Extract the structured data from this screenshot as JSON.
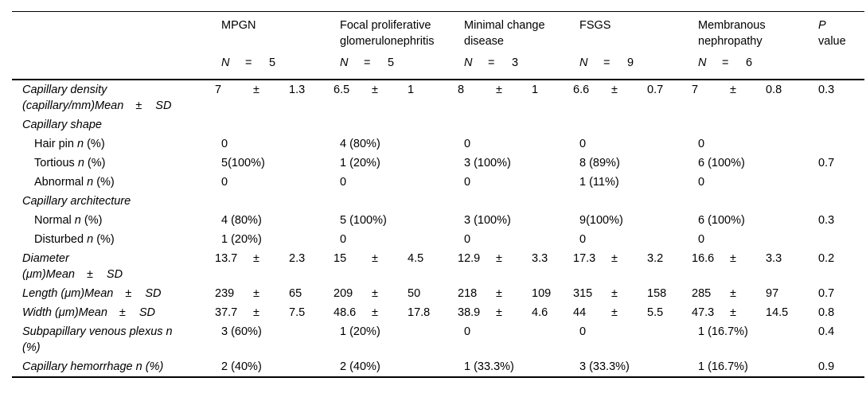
{
  "colors": {
    "background": "#ffffff",
    "text": "#000000",
    "rule": "#000000"
  },
  "table": {
    "pm_symbol": "±",
    "group_columns": [
      {
        "label": "MPGN",
        "n_symbol": "N",
        "eq": "=",
        "n": "5"
      },
      {
        "label": "Focal proliferative glomerulonephritis",
        "n_symbol": "N",
        "eq": "=",
        "n": "5"
      },
      {
        "label": "Minimal change disease",
        "n_symbol": "N",
        "eq": "=",
        "n": "3"
      },
      {
        "label": "FSGS",
        "n_symbol": "N",
        "eq": "=",
        "n": "9"
      },
      {
        "label": "Membranous nephropathy",
        "n_symbol": "N",
        "eq": "=",
        "n": "6"
      }
    ],
    "p_column": {
      "line1": "P",
      "line2": "value"
    },
    "rows": [
      {
        "label_lines": [
          {
            "parts": [
              {
                "t": "Capillary density",
                "i": true
              }
            ]
          },
          {
            "parts": [
              {
                "t": "(capillary/mm)Mean",
                "i": true
              }
            ],
            "pm": "±",
            "sd": "SD"
          }
        ],
        "indent": false,
        "cells": [
          {
            "mean": "7",
            "sd": "1.3"
          },
          {
            "mean": "6.5",
            "sd": "1"
          },
          {
            "mean": "8",
            "sd": "1"
          },
          {
            "mean": "6.6",
            "sd": "0.7"
          },
          {
            "mean": "7",
            "sd": "0.8"
          }
        ],
        "p": "0.3"
      },
      {
        "label_lines": [
          {
            "parts": [
              {
                "t": "Capillary shape",
                "i": true
              }
            ]
          }
        ],
        "indent": false,
        "cells": [
          null,
          null,
          null,
          null,
          null
        ],
        "p": ""
      },
      {
        "label_lines": [
          {
            "parts": [
              {
                "t": "Hair pin ",
                "i": false
              },
              {
                "t": "n",
                "i": true
              },
              {
                "t": " (%)",
                "i": false
              }
            ]
          }
        ],
        "indent": true,
        "cells": [
          {
            "text": "0"
          },
          {
            "text": "4 (80%)"
          },
          {
            "text": "0"
          },
          {
            "text": "0"
          },
          {
            "text": "0"
          }
        ],
        "p": ""
      },
      {
        "label_lines": [
          {
            "parts": [
              {
                "t": "Tortious ",
                "i": false
              },
              {
                "t": "n",
                "i": true
              },
              {
                "t": " (%)",
                "i": false
              }
            ]
          }
        ],
        "indent": true,
        "cells": [
          {
            "text": "5(100%)"
          },
          {
            "text": "1 (20%)"
          },
          {
            "text": "3 (100%)"
          },
          {
            "text": "8 (89%)"
          },
          {
            "text": "6 (100%)"
          }
        ],
        "p": "0.7"
      },
      {
        "label_lines": [
          {
            "parts": [
              {
                "t": "Abnormal ",
                "i": false
              },
              {
                "t": "n",
                "i": true
              },
              {
                "t": " (%)",
                "i": false
              }
            ]
          }
        ],
        "indent": true,
        "cells": [
          {
            "text": "0"
          },
          {
            "text": "0"
          },
          {
            "text": "0"
          },
          {
            "text": "1 (11%)"
          },
          {
            "text": "0"
          }
        ],
        "p": ""
      },
      {
        "label_lines": [
          {
            "parts": [
              {
                "t": "Capillary architecture",
                "i": true
              }
            ]
          }
        ],
        "indent": false,
        "cells": [
          null,
          null,
          null,
          null,
          null
        ],
        "p": ""
      },
      {
        "label_lines": [
          {
            "parts": [
              {
                "t": "Normal ",
                "i": false
              },
              {
                "t": "n",
                "i": true
              },
              {
                "t": " (%)",
                "i": false
              }
            ]
          }
        ],
        "indent": true,
        "cells": [
          {
            "text": "4 (80%)"
          },
          {
            "text": "5 (100%)"
          },
          {
            "text": "3 (100%)"
          },
          {
            "text": "9(100%)"
          },
          {
            "text": "6 (100%)"
          }
        ],
        "p": "0.3"
      },
      {
        "label_lines": [
          {
            "parts": [
              {
                "t": "Disturbed ",
                "i": false
              },
              {
                "t": "n",
                "i": true
              },
              {
                "t": " (%)",
                "i": false
              }
            ]
          }
        ],
        "indent": true,
        "cells": [
          {
            "text": "1 (20%)"
          },
          {
            "text": "0"
          },
          {
            "text": "0"
          },
          {
            "text": "0"
          },
          {
            "text": "0"
          }
        ],
        "p": ""
      },
      {
        "label_lines": [
          {
            "parts": [
              {
                "t": "Diameter",
                "i": true
              }
            ]
          },
          {
            "parts": [
              {
                "t": "(μm)Mean",
                "i": true
              }
            ],
            "pm": "±",
            "sd": "SD"
          }
        ],
        "indent": false,
        "cells": [
          {
            "mean": "13.7",
            "sd": "2.3"
          },
          {
            "mean": "15",
            "sd": "4.5"
          },
          {
            "mean": "12.9",
            "sd": "3.3"
          },
          {
            "mean": "17.3",
            "sd": "3.2"
          },
          {
            "mean": "16.6",
            "sd": "3.3"
          }
        ],
        "p": "0.2"
      },
      {
        "label_lines": [
          {
            "parts": [
              {
                "t": "Length (μm)Mean",
                "i": true
              }
            ],
            "pm": "±",
            "sd": "SD"
          }
        ],
        "indent": false,
        "cells": [
          {
            "mean": "239",
            "sd": "65"
          },
          {
            "mean": "209",
            "sd": "50"
          },
          {
            "mean": "218",
            "sd": "109"
          },
          {
            "mean": "315",
            "sd": "158"
          },
          {
            "mean": "285",
            "sd": "97"
          }
        ],
        "p": "0.7"
      },
      {
        "label_lines": [
          {
            "parts": [
              {
                "t": "Width (μm)Mean",
                "i": true
              }
            ],
            "pm": "±",
            "sd": "SD"
          }
        ],
        "indent": false,
        "cells": [
          {
            "mean": "37.7",
            "sd": "7.5"
          },
          {
            "mean": "48.6",
            "sd": "17.8"
          },
          {
            "mean": "38.9",
            "sd": "4.6"
          },
          {
            "mean": "44",
            "sd": "5.5"
          },
          {
            "mean": "47.3",
            "sd": "14.5"
          }
        ],
        "p": "0.8"
      },
      {
        "label_lines": [
          {
            "parts": [
              {
                "t": "Subpapillary venous plexus n",
                "i": true
              }
            ]
          },
          {
            "parts": [
              {
                "t": "(%)",
                "i": true
              }
            ]
          }
        ],
        "indent": false,
        "cells": [
          {
            "text": "3 (60%)"
          },
          {
            "text": "1 (20%)"
          },
          {
            "text": "0"
          },
          {
            "text": "0"
          },
          {
            "text": "1 (16.7%)"
          }
        ],
        "p": "0.4"
      },
      {
        "label_lines": [
          {
            "parts": [
              {
                "t": "Capillary hemorrhage n (%)",
                "i": true
              }
            ]
          }
        ],
        "indent": false,
        "cells": [
          {
            "text": "2 (40%)"
          },
          {
            "text": "2 (40%)"
          },
          {
            "text": "1 (33.3%)"
          },
          {
            "text": "3 (33.3%)"
          },
          {
            "text": "1 (16.7%)"
          }
        ],
        "p": "0.9"
      }
    ]
  }
}
